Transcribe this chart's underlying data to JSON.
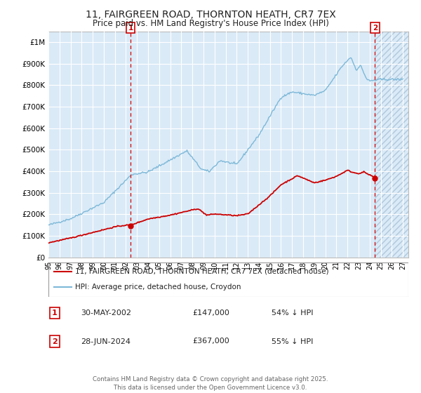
{
  "title": "11, FAIRGREEN ROAD, THORNTON HEATH, CR7 7EX",
  "subtitle": "Price paid vs. HM Land Registry's House Price Index (HPI)",
  "ylim": [
    0,
    1050000
  ],
  "xlim_start": 1995.0,
  "xlim_end": 2027.5,
  "yticks": [
    0,
    100000,
    200000,
    300000,
    400000,
    500000,
    600000,
    700000,
    800000,
    900000,
    1000000
  ],
  "ytick_labels": [
    "£0",
    "£100K",
    "£200K",
    "£300K",
    "£400K",
    "£500K",
    "£600K",
    "£700K",
    "£800K",
    "£900K",
    "£1M"
  ],
  "xtick_years": [
    1995,
    1996,
    1997,
    1998,
    1999,
    2000,
    2001,
    2002,
    2003,
    2004,
    2005,
    2006,
    2007,
    2008,
    2009,
    2010,
    2011,
    2012,
    2013,
    2014,
    2015,
    2016,
    2017,
    2018,
    2019,
    2020,
    2021,
    2022,
    2023,
    2024,
    2025,
    2026,
    2027
  ],
  "hpi_color": "#7db8d8",
  "price_color": "#cc0000",
  "marker_color": "#cc0000",
  "vline_color": "#cc0000",
  "point1_x": 2002.41,
  "point1_y": 147000,
  "point1_label": "1",
  "point2_x": 2024.49,
  "point2_y": 367000,
  "point2_label": "2",
  "legend_line1": "11, FAIRGREEN ROAD, THORNTON HEATH, CR7 7EX (detached house)",
  "legend_line2": "HPI: Average price, detached house, Croydon",
  "footer": "Contains HM Land Registry data © Crown copyright and database right 2025.\nThis data is licensed under the Open Government Licence v3.0.",
  "bg_color": "#daeaf7",
  "grid_color": "#ffffff",
  "future_start": 2024.49
}
